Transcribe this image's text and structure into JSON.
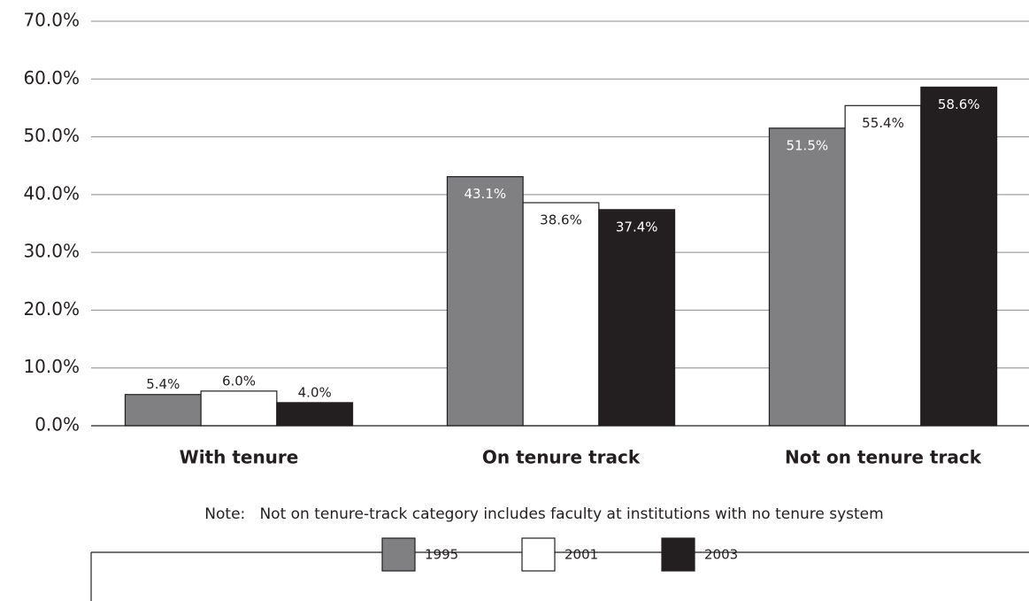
{
  "chart_data": {
    "type": "bar",
    "categories": [
      "With tenure",
      "On tenure track",
      "Not on tenure track"
    ],
    "series": [
      {
        "name": "1995",
        "color": "#808083",
        "values": [
          5.4,
          43.1,
          51.5
        ],
        "value_labels": [
          "5.4%",
          "43.1%",
          "51.5%"
        ]
      },
      {
        "name": "2001",
        "color": "#ffffff",
        "values": [
          6.0,
          38.6,
          55.4
        ],
        "value_labels": [
          "6.0%",
          "38.6%",
          "55.4%"
        ]
      },
      {
        "name": "2003",
        "color": "#231f20",
        "values": [
          4.0,
          37.4,
          58.6
        ],
        "value_labels": [
          "4.0%",
          "37.4%",
          "58.6%"
        ]
      }
    ],
    "ylim": [
      0,
      70
    ],
    "yticks": [
      {
        "value": 0,
        "label": "0.0%"
      },
      {
        "value": 10,
        "label": "10.0%"
      },
      {
        "value": 20,
        "label": "20.0%"
      },
      {
        "value": 30,
        "label": "30.0%"
      },
      {
        "value": 40,
        "label": "40.0%"
      },
      {
        "value": 50,
        "label": "50.0%"
      },
      {
        "value": 60,
        "label": "60.0%"
      },
      {
        "value": 70,
        "label": "70.0%"
      }
    ],
    "grid": true,
    "note": "Note:   Not on tenure-track category includes faculty at institutions with no tenure system",
    "legend": "bottom"
  }
}
